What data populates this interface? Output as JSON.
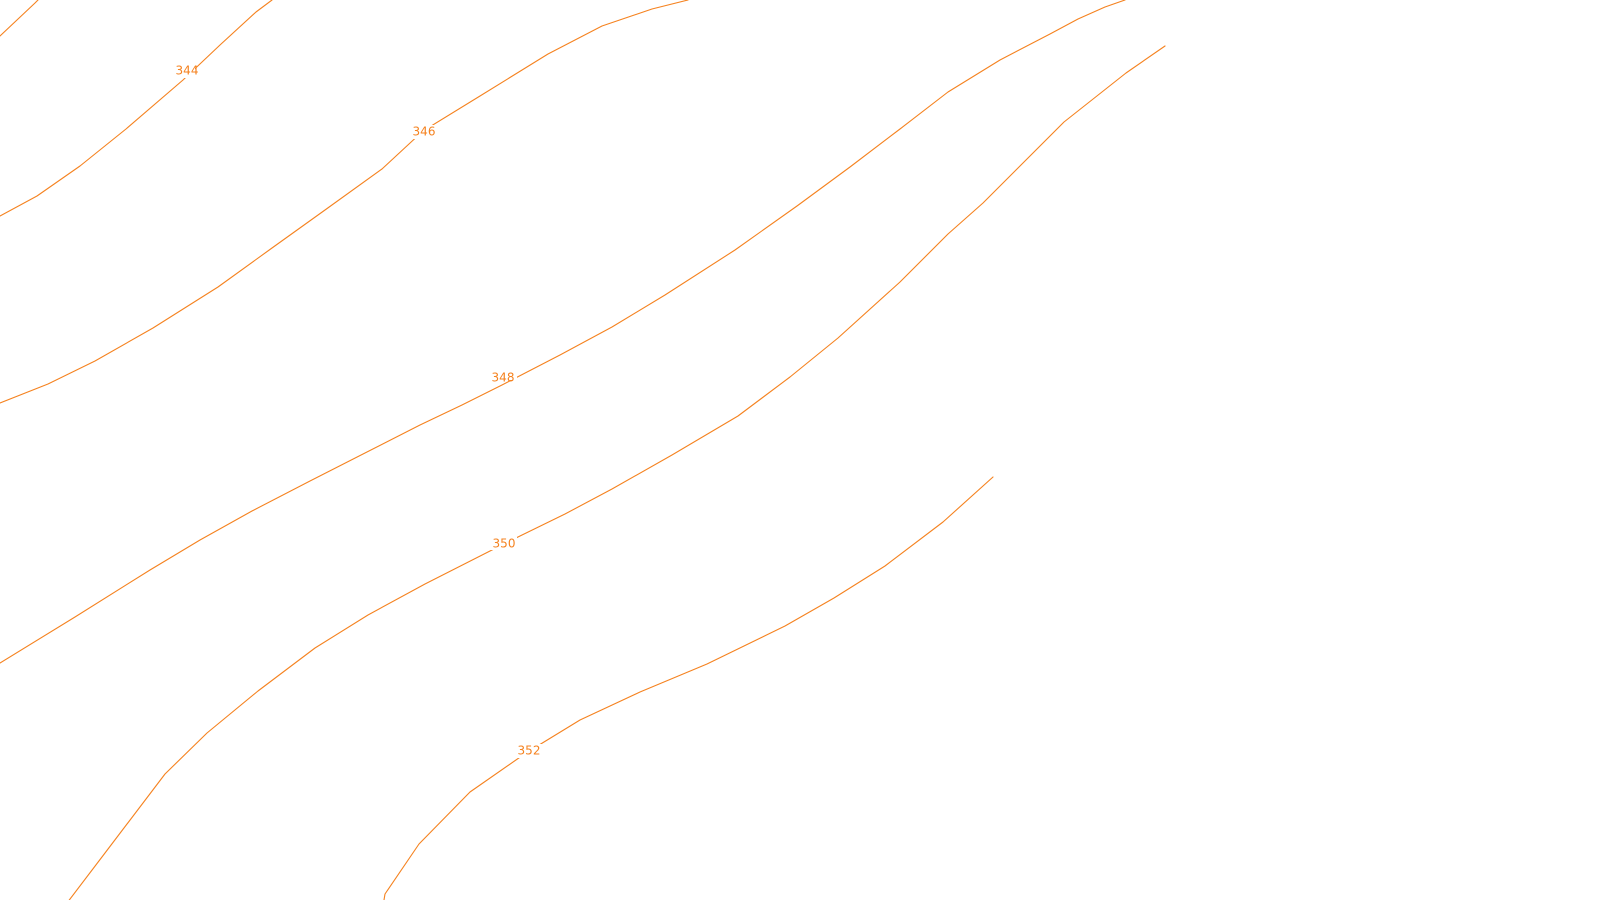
{
  "map": {
    "line_color": "#f5821f",
    "background_color": "#ffffff",
    "contours": [
      {
        "id": "c344",
        "elevation": "344",
        "label": "344"
      },
      {
        "id": "c346",
        "elevation": "346",
        "label": "346"
      },
      {
        "id": "c348",
        "elevation": "348",
        "label": "348"
      },
      {
        "id": "c350",
        "elevation": "350",
        "label": "350"
      },
      {
        "id": "c352",
        "elevation": "352",
        "label": "352"
      }
    ]
  }
}
